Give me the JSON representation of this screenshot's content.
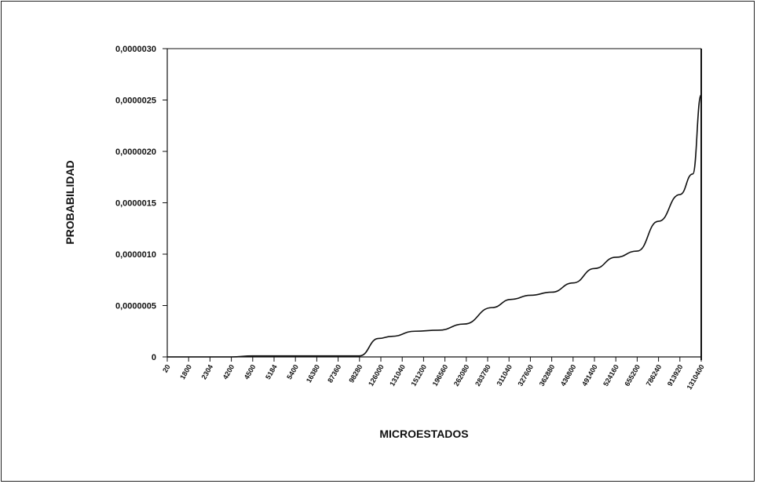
{
  "chart_data": {
    "type": "line",
    "title": "",
    "xlabel": "MICROESTADOS",
    "ylabel": "PROBABILIDAD",
    "ylim": [
      0,
      3e-06
    ],
    "y_ticks": [
      "0",
      "0,0000005",
      "0,0000010",
      "0,0000015",
      "0,0000020",
      "0,0000025",
      "0,0000030"
    ],
    "x_ticks": [
      "20",
      "1800",
      "2304",
      "4200",
      "4500",
      "5184",
      "5400",
      "16380",
      "87360",
      "98280",
      "126000",
      "131040",
      "151200",
      "196560",
      "262080",
      "283780",
      "311040",
      "327600",
      "362880",
      "436800",
      "491400",
      "524160",
      "655200",
      "786240",
      "913920",
      "1310400"
    ],
    "series": [
      {
        "values_by_tick": [
          0,
          0,
          0,
          0,
          1e-08,
          1e-08,
          1e-08,
          1e-08,
          1e-08,
          1e-08,
          1.8e-07,
          2e-07,
          2.5e-07,
          2.6e-07,
          3.2e-07,
          4.8e-07,
          5.6e-07,
          6e-07,
          6.3e-07,
          7.2e-07,
          8.6e-07,
          9.7e-07,
          1.03e-06,
          1.32e-06,
          1.58e-06,
          1.78e-06,
          2.55e-06
        ],
        "x_positions_by_tick": [
          0,
          1,
          2,
          3,
          4,
          5,
          6,
          7,
          8,
          9,
          9.9,
          10.5,
          11.6,
          12.7,
          13.9,
          15.2,
          16.1,
          17.0,
          18.0,
          19.0,
          20.0,
          21.0,
          22.0,
          23.0,
          24.0,
          24.6,
          25.0
        ]
      }
    ],
    "grid": false,
    "legend": "none",
    "line_color": "#111111"
  }
}
